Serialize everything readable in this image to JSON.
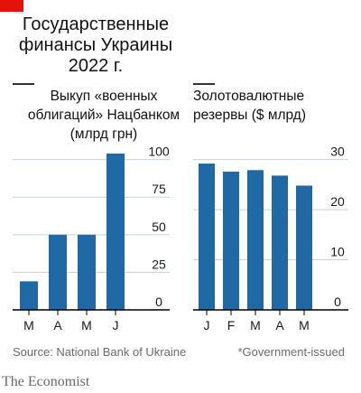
{
  "title": "Государственные финансы Украины 2022 г.",
  "source": "Source: National Bank of Ukraine",
  "footnote": "*Government-issued",
  "publisher": "The Economist",
  "colors": {
    "bar": "#1f6aa5",
    "brand": "#e3120b",
    "grid": "#c7d1d9",
    "axis": "#000000"
  },
  "chart_data": [
    {
      "type": "bar",
      "title": "Выкуп «военных облигаций» Нацбанком (млрд грн)",
      "categories": [
        "M",
        "A",
        "M",
        "J"
      ],
      "values": [
        19,
        50,
        50,
        104
      ],
      "ylim": [
        0,
        110
      ],
      "yticks": [
        0,
        25,
        50,
        75,
        100
      ],
      "grid": true
    },
    {
      "type": "bar",
      "title": "Золотовалютные резервы ($ млрд)",
      "categories": [
        "J",
        "F",
        "M",
        "A",
        "M"
      ],
      "values": [
        29.2,
        27.6,
        27.9,
        26.8,
        24.8
      ],
      "ylim": [
        0,
        33
      ],
      "yticks": [
        0,
        10,
        20,
        30
      ],
      "grid": true
    }
  ]
}
